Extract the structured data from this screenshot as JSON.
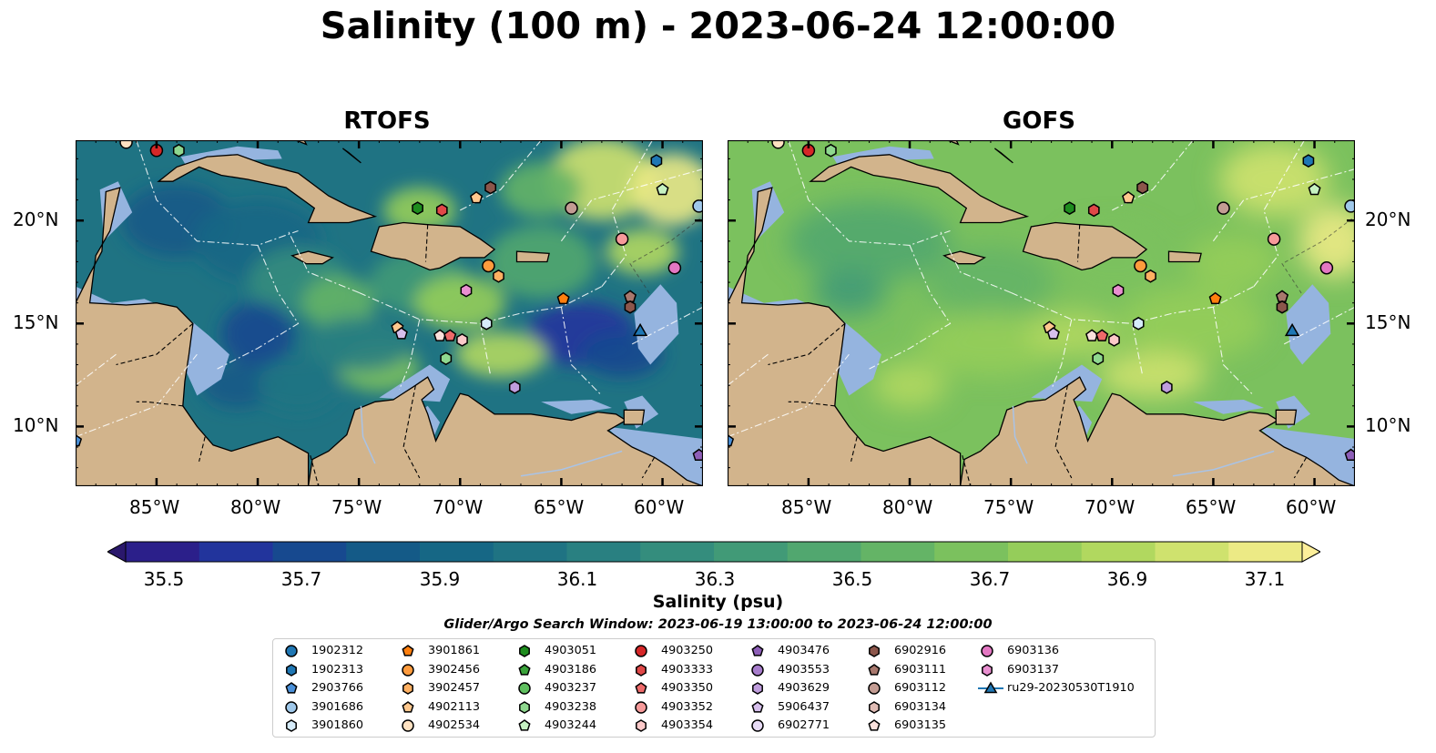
{
  "title": "Salinity (100 m) - 2023-06-24 12:00:00",
  "panels": [
    {
      "title": "RTOFS"
    },
    {
      "title": "GOFS"
    }
  ],
  "axes": {
    "lon_ticks": [
      "85°W",
      "80°W",
      "75°W",
      "70°W",
      "65°W",
      "60°W"
    ],
    "lat_ticks": [
      "20°N",
      "15°N",
      "10°N"
    ],
    "lon_range": [
      -89,
      -58
    ],
    "lat_range": [
      7.1,
      23.9
    ]
  },
  "colorbar": {
    "label": "Salinity (psu)",
    "ticks": [
      "35.5",
      "35.7",
      "35.9",
      "36.1",
      "36.3",
      "36.5",
      "36.7",
      "36.9",
      "37.1"
    ],
    "min": 35.5,
    "max": 37.1,
    "step": 0.1,
    "colormap": "haline",
    "extend": "both",
    "colors": [
      "#2a186c",
      "#2b1f8a",
      "#22349c",
      "#17498f",
      "#145a87",
      "#166785",
      "#1f7383",
      "#298081",
      "#348d7d",
      "#419a77",
      "#51a76f",
      "#64b466",
      "#7bc15e",
      "#95cd5a",
      "#b1d85f",
      "#cfe26e",
      "#ecea85",
      "#fdef9a"
    ]
  },
  "search_window": "Glider/Argo Search Window: 2023-06-19 13:00:00 to 2023-06-24 12:00:00",
  "colors": {
    "land": "#d2b48c",
    "shallow": "#95b4df",
    "deep_pacific": "#2a186c"
  },
  "legend": [
    {
      "label": "1902312",
      "marker": "circle",
      "color": "#1f77b4"
    },
    {
      "label": "1902313",
      "marker": "hexagon",
      "color": "#1f77b4"
    },
    {
      "label": "2903766",
      "marker": "pentagon",
      "color": "#4a90d9"
    },
    {
      "label": "3901686",
      "marker": "circle",
      "color": "#9fc8ea"
    },
    {
      "label": "3901860",
      "marker": "hexagon",
      "color": "#d6ecfa"
    },
    {
      "label": "3901861",
      "marker": "pentagon",
      "color": "#ff7f0e"
    },
    {
      "label": "3902456",
      "marker": "circle",
      "color": "#ff9b3d"
    },
    {
      "label": "3902457",
      "marker": "hexagon",
      "color": "#ffb062"
    },
    {
      "label": "4902113",
      "marker": "pentagon",
      "color": "#ffc88e"
    },
    {
      "label": "4902534",
      "marker": "circle",
      "color": "#ffe2c2"
    },
    {
      "label": "4903051",
      "marker": "hexagon",
      "color": "#1e8c1e"
    },
    {
      "label": "4903186",
      "marker": "pentagon",
      "color": "#3aa33a"
    },
    {
      "label": "4903237",
      "marker": "circle",
      "color": "#5fbf5f"
    },
    {
      "label": "4903238",
      "marker": "hexagon",
      "color": "#8fd88f"
    },
    {
      "label": "4903244",
      "marker": "pentagon",
      "color": "#c6f2c2"
    },
    {
      "label": "4903250",
      "marker": "circle",
      "color": "#d62728"
    },
    {
      "label": "4903333",
      "marker": "hexagon",
      "color": "#e04848"
    },
    {
      "label": "4903350",
      "marker": "pentagon",
      "color": "#ee6a6a"
    },
    {
      "label": "4903352",
      "marker": "circle",
      "color": "#f69a9a"
    },
    {
      "label": "4903354",
      "marker": "hexagon",
      "color": "#fcc9c9"
    },
    {
      "label": "4903476",
      "marker": "pentagon",
      "color": "#8e5fb8"
    },
    {
      "label": "4903553",
      "marker": "circle",
      "color": "#a77dcc"
    },
    {
      "label": "4903629",
      "marker": "hexagon",
      "color": "#bf9ddd"
    },
    {
      "label": "5906437",
      "marker": "pentagon",
      "color": "#d6bfec"
    },
    {
      "label": "6902771",
      "marker": "circle",
      "color": "#e8dcf6"
    },
    {
      "label": "6902916",
      "marker": "hexagon",
      "color": "#8c564b"
    },
    {
      "label": "6903111",
      "marker": "pentagon",
      "color": "#a8786d"
    },
    {
      "label": "6903112",
      "marker": "circle",
      "color": "#c39c93"
    },
    {
      "label": "6903134",
      "marker": "hexagon",
      "color": "#e0bcb5"
    },
    {
      "label": "6903135",
      "marker": "pentagon",
      "color": "#fbe1dc"
    },
    {
      "label": "6903136",
      "marker": "circle",
      "color": "#e377c2"
    },
    {
      "label": "6903137",
      "marker": "hexagon",
      "color": "#e98fd0"
    },
    {
      "label": "ru29-20230530T1910",
      "marker": "triangle-line",
      "color": "#1f77b4"
    }
  ],
  "floats": [
    {
      "id": "4903250",
      "lon": -85.0,
      "lat": 23.4
    },
    {
      "id": "4903238",
      "lon": -83.9,
      "lat": 23.4
    },
    {
      "id": "4902534",
      "lon": -86.5,
      "lat": 23.8
    },
    {
      "id": "1902313",
      "lon": -60.3,
      "lat": 22.9
    },
    {
      "id": "4903244",
      "lon": -60.0,
      "lat": 21.5
    },
    {
      "id": "3901686",
      "lon": -58.2,
      "lat": 20.7
    },
    {
      "id": "6902916",
      "lon": -68.5,
      "lat": 21.6
    },
    {
      "id": "4902113",
      "lon": -69.2,
      "lat": 21.1
    },
    {
      "id": "4903051",
      "lon": -72.1,
      "lat": 20.6
    },
    {
      "id": "4903333",
      "lon": -70.9,
      "lat": 20.5
    },
    {
      "id": "6903112",
      "lon": -64.5,
      "lat": 20.6
    },
    {
      "id": "4903352",
      "lon": -62.0,
      "lat": 19.1
    },
    {
      "id": "3902456",
      "lon": -68.6,
      "lat": 17.8
    },
    {
      "id": "3902457",
      "lon": -68.1,
      "lat": 17.3
    },
    {
      "id": "6903136",
      "lon": -59.4,
      "lat": 17.7
    },
    {
      "id": "6903137",
      "lon": -69.7,
      "lat": 16.6
    },
    {
      "id": "3901861",
      "lon": -64.9,
      "lat": 16.2
    },
    {
      "id": "6903111",
      "lon": -61.6,
      "lat": 16.3
    },
    {
      "id": "6902916",
      "lon": -61.6,
      "lat": 15.8
    },
    {
      "id": "4902113",
      "lon": -73.1,
      "lat": 14.8
    },
    {
      "id": "5906437",
      "lon": -72.9,
      "lat": 14.5
    },
    {
      "id": "3901860",
      "lon": -68.7,
      "lat": 15.0
    },
    {
      "id": "6903135",
      "lon": -71.0,
      "lat": 14.4
    },
    {
      "id": "4903350",
      "lon": -70.5,
      "lat": 14.4
    },
    {
      "id": "4903354",
      "lon": -69.9,
      "lat": 14.2
    },
    {
      "id": "4903238",
      "lon": -70.7,
      "lat": 13.3
    },
    {
      "id": "4903629",
      "lon": -67.3,
      "lat": 11.9
    },
    {
      "id": "4903476",
      "lon": -58.2,
      "lat": 8.6
    },
    {
      "id": "2903766",
      "lon": -89.0,
      "lat": 9.3
    }
  ],
  "glider": {
    "id": "ru29-20230530T1910",
    "lon": -61.1,
    "lat": 14.6
  }
}
